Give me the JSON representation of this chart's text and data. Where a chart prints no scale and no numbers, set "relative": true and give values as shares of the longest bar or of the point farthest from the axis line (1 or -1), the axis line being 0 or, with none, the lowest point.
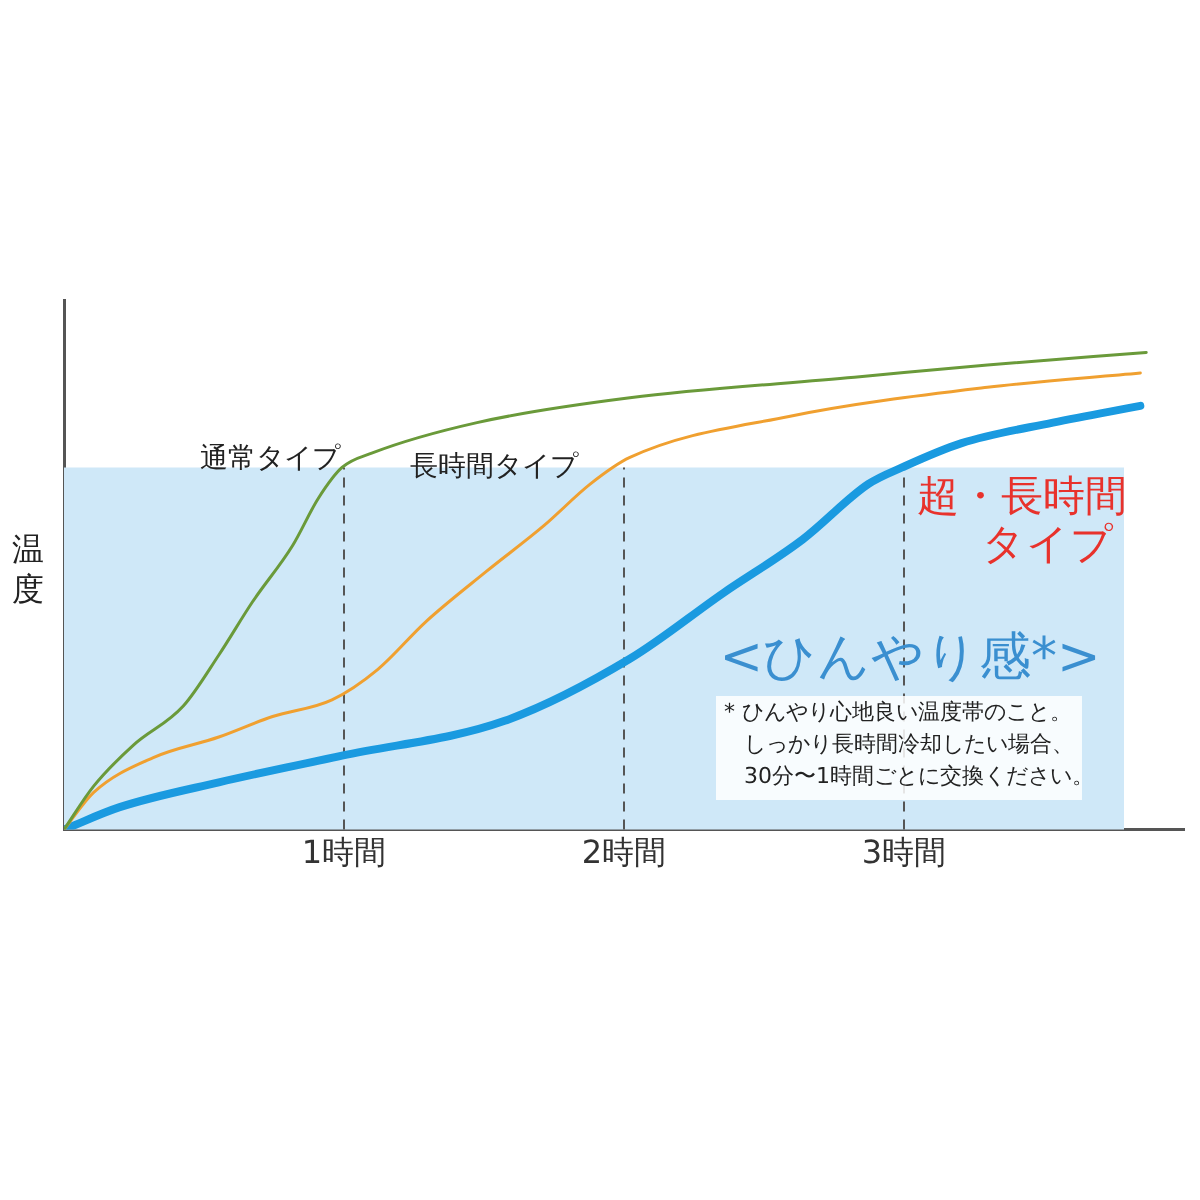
{
  "chart_data": {
    "type": "line",
    "relative": true,
    "ylabel": "温度",
    "xlim": [
      0,
      4
    ],
    "xticks": [
      {
        "value": 1,
        "label": "1時間"
      },
      {
        "value": 2,
        "label": "2時間"
      },
      {
        "value": 3,
        "label": "3時間"
      }
    ],
    "series": [
      {
        "name": "通常タイプ",
        "color": "#6a9a3a",
        "x": [
          0,
          0.106,
          0.248,
          0.426,
          0.553,
          0.674,
          0.816,
          0.908,
          0.993,
          1.099,
          1.475,
          2.021,
          2.823,
          3.298,
          3.865
        ],
        "values": [
          0,
          0.091,
          0.177,
          0.259,
          0.366,
          0.478,
          0.595,
          0.694,
          0.759,
          0.789,
          0.853,
          0.905,
          0.948,
          0.974,
          1
        ]
      },
      {
        "name": "長時間タイプ",
        "color": "#f0a030",
        "x": [
          0,
          0.106,
          0.319,
          0.553,
          0.745,
          0.957,
          1.121,
          1.291,
          1.504,
          1.716,
          1.879,
          2.021,
          2.589,
          3.298,
          3.844
        ],
        "values": [
          0,
          0.078,
          0.151,
          0.194,
          0.237,
          0.272,
          0.336,
          0.435,
          0.539,
          0.638,
          0.724,
          0.78,
          0.866,
          0.927,
          0.957
        ]
      },
      {
        "name": "超・長時間タイプ",
        "color": "#1a9ae0",
        "x": [
          0,
          0.199,
          0.553,
          0.993,
          1.574,
          2.021,
          2.355,
          2.638,
          2.872,
          2.993,
          3.206,
          3.532,
          3.844
        ],
        "values": [
          0,
          0.047,
          0.099,
          0.155,
          0.228,
          0.358,
          0.496,
          0.608,
          0.724,
          0.759,
          0.81,
          0.853,
          0.888
        ]
      }
    ],
    "bands": [
      {
        "axis": "y",
        "from": 0,
        "to": 0.759,
        "label": "<ひんやり感*>",
        "color": "#cfe8f8"
      }
    ],
    "ref_lines": [
      {
        "axis": "x",
        "value": 1,
        "line_style": "dashed"
      },
      {
        "axis": "x",
        "value": 2,
        "line_style": "dashed"
      },
      {
        "axis": "x",
        "value": 3,
        "line_style": "dashed"
      }
    ],
    "annotations": [
      "* ひんやり心地良い温度帯のこと。しっかり長時間冷却したい場合、30分〜1時間ごとに交換ください。"
    ],
    "legend": false,
    "grid": false,
    "marker": "none",
    "line_style": "solid"
  }
}
